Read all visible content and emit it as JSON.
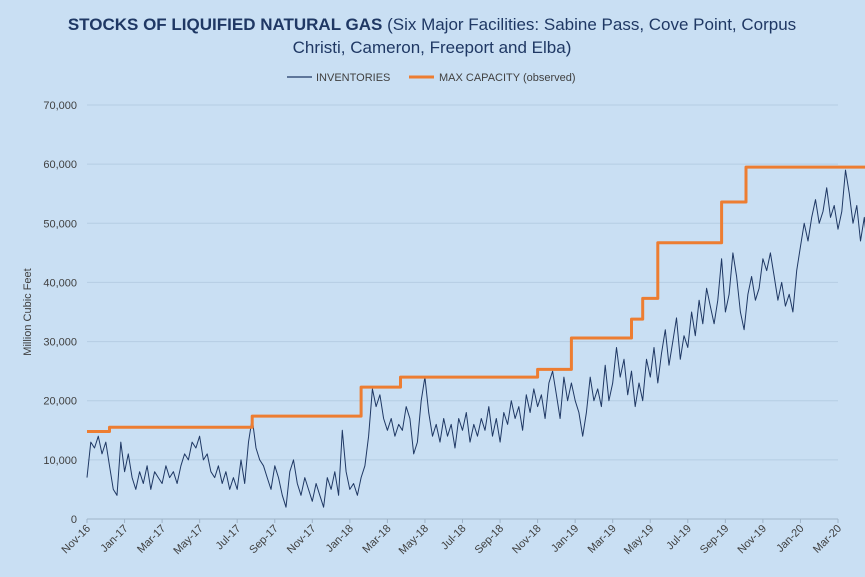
{
  "chart_data": {
    "type": "line",
    "title_bold": "STOCKS OF LIQUIFIED NATURAL GAS",
    "title_rest_line1": " (Six Major Facilities: Sabine Pass, Cove Point, Corpus",
    "title_line2": "Christi, Cameron, Freeport and Elba)",
    "ylabel": "Million Cubic Feet",
    "xlabel": "",
    "ylim": [
      0,
      70000
    ],
    "yticks": [
      "0",
      "10,000",
      "20,000",
      "30,000",
      "40,000",
      "50,000",
      "60,000",
      "70,000"
    ],
    "xticks": [
      "Nov-16",
      "Jan-17",
      "Mar-17",
      "May-17",
      "Jul-17",
      "Sep-17",
      "Nov-17",
      "Jan-18",
      "Mar-18",
      "May-18",
      "Jul-18",
      "Sep-18",
      "Nov-18",
      "Jan-19",
      "Mar-19",
      "May-19",
      "Jul-19",
      "Sep-19",
      "Nov-19",
      "Jan-20",
      "Mar-20"
    ],
    "grid": true,
    "legend_position": "top",
    "colors": {
      "inventories": "#1f3864",
      "max_capacity": "#ed7d31",
      "background": "#c9dff3"
    },
    "series": [
      {
        "name": "INVENTORIES",
        "style": "line",
        "points": [
          [
            0.0,
            7000
          ],
          [
            0.2,
            13000
          ],
          [
            0.4,
            12000
          ],
          [
            0.6,
            14000
          ],
          [
            0.8,
            11000
          ],
          [
            1.0,
            13000
          ],
          [
            1.2,
            9000
          ],
          [
            1.4,
            5000
          ],
          [
            1.6,
            4000
          ],
          [
            1.8,
            13000
          ],
          [
            2.0,
            8000
          ],
          [
            2.2,
            11000
          ],
          [
            2.4,
            7000
          ],
          [
            2.6,
            5000
          ],
          [
            2.8,
            8000
          ],
          [
            3.0,
            6000
          ],
          [
            3.2,
            9000
          ],
          [
            3.4,
            5000
          ],
          [
            3.6,
            8000
          ],
          [
            3.8,
            7000
          ],
          [
            4.0,
            6000
          ],
          [
            4.2,
            9000
          ],
          [
            4.4,
            7000
          ],
          [
            4.6,
            8000
          ],
          [
            4.8,
            6000
          ],
          [
            5.0,
            9000
          ],
          [
            5.2,
            11000
          ],
          [
            5.4,
            10000
          ],
          [
            5.6,
            13000
          ],
          [
            5.8,
            12000
          ],
          [
            6.0,
            14000
          ],
          [
            6.2,
            10000
          ],
          [
            6.4,
            11000
          ],
          [
            6.6,
            8000
          ],
          [
            6.8,
            7000
          ],
          [
            7.0,
            9000
          ],
          [
            7.2,
            6000
          ],
          [
            7.4,
            8000
          ],
          [
            7.6,
            5000
          ],
          [
            7.8,
            7000
          ],
          [
            8.0,
            5000
          ],
          [
            8.2,
            10000
          ],
          [
            8.4,
            6000
          ],
          [
            8.6,
            13000
          ],
          [
            8.8,
            17000
          ],
          [
            9.0,
            12000
          ],
          [
            9.2,
            10000
          ],
          [
            9.4,
            9000
          ],
          [
            9.6,
            7000
          ],
          [
            9.8,
            5000
          ],
          [
            10.0,
            9000
          ],
          [
            10.2,
            7000
          ],
          [
            10.4,
            4000
          ],
          [
            10.6,
            2000
          ],
          [
            10.8,
            8000
          ],
          [
            11.0,
            10000
          ],
          [
            11.2,
            6000
          ],
          [
            11.4,
            4000
          ],
          [
            11.6,
            7000
          ],
          [
            11.8,
            5000
          ],
          [
            12.0,
            3000
          ],
          [
            12.2,
            6000
          ],
          [
            12.4,
            4000
          ],
          [
            12.6,
            2000
          ],
          [
            12.8,
            7000
          ],
          [
            13.0,
            5000
          ],
          [
            13.2,
            8000
          ],
          [
            13.4,
            4000
          ],
          [
            13.6,
            15000
          ],
          [
            13.8,
            8000
          ],
          [
            14.0,
            5000
          ],
          [
            14.2,
            6000
          ],
          [
            14.4,
            4000
          ],
          [
            14.6,
            7000
          ],
          [
            14.8,
            9000
          ],
          [
            15.0,
            14000
          ],
          [
            15.2,
            22000
          ],
          [
            15.4,
            19000
          ],
          [
            15.6,
            21000
          ],
          [
            15.8,
            17000
          ],
          [
            16.0,
            15000
          ],
          [
            16.2,
            17000
          ],
          [
            16.4,
            14000
          ],
          [
            16.6,
            16000
          ],
          [
            16.8,
            15000
          ],
          [
            17.0,
            19000
          ],
          [
            17.2,
            17000
          ],
          [
            17.4,
            11000
          ],
          [
            17.6,
            13000
          ],
          [
            17.8,
            20000
          ],
          [
            18.0,
            24000
          ],
          [
            18.2,
            18000
          ],
          [
            18.4,
            14000
          ],
          [
            18.6,
            16000
          ],
          [
            18.8,
            13000
          ],
          [
            19.0,
            17000
          ],
          [
            19.2,
            14000
          ],
          [
            19.4,
            16000
          ],
          [
            19.6,
            12000
          ],
          [
            19.8,
            17000
          ],
          [
            20.0,
            15000
          ],
          [
            20.2,
            18000
          ],
          [
            20.4,
            13000
          ],
          [
            20.6,
            16000
          ],
          [
            20.8,
            14000
          ],
          [
            21.0,
            17000
          ],
          [
            21.2,
            15000
          ],
          [
            21.4,
            19000
          ],
          [
            21.6,
            14000
          ],
          [
            21.8,
            17000
          ],
          [
            22.0,
            13000
          ],
          [
            22.2,
            18000
          ],
          [
            22.4,
            16000
          ],
          [
            22.6,
            20000
          ],
          [
            22.8,
            17000
          ],
          [
            23.0,
            19000
          ],
          [
            23.2,
            15000
          ],
          [
            23.4,
            21000
          ],
          [
            23.6,
            18000
          ],
          [
            23.8,
            22000
          ],
          [
            24.0,
            19000
          ],
          [
            24.2,
            21000
          ],
          [
            24.4,
            17000
          ],
          [
            24.6,
            23000
          ],
          [
            24.8,
            25000
          ],
          [
            25.0,
            21000
          ],
          [
            25.2,
            17000
          ],
          [
            25.4,
            24000
          ],
          [
            25.6,
            20000
          ],
          [
            25.8,
            23000
          ],
          [
            26.0,
            20000
          ],
          [
            26.2,
            18000
          ],
          [
            26.4,
            14000
          ],
          [
            26.6,
            18000
          ],
          [
            26.8,
            24000
          ],
          [
            27.0,
            20000
          ],
          [
            27.2,
            22000
          ],
          [
            27.4,
            19000
          ],
          [
            27.6,
            26000
          ],
          [
            27.8,
            20000
          ],
          [
            28.0,
            23000
          ],
          [
            28.2,
            29000
          ],
          [
            28.4,
            24000
          ],
          [
            28.6,
            27000
          ],
          [
            28.8,
            21000
          ],
          [
            29.0,
            25000
          ],
          [
            29.2,
            19000
          ],
          [
            29.4,
            23000
          ],
          [
            29.6,
            20000
          ],
          [
            29.8,
            27000
          ],
          [
            30.0,
            24000
          ],
          [
            30.2,
            29000
          ],
          [
            30.4,
            23000
          ],
          [
            30.6,
            28000
          ],
          [
            30.8,
            32000
          ],
          [
            31.0,
            26000
          ],
          [
            31.2,
            30000
          ],
          [
            31.4,
            34000
          ],
          [
            31.6,
            27000
          ],
          [
            31.8,
            31000
          ],
          [
            32.0,
            29000
          ],
          [
            32.2,
            35000
          ],
          [
            32.4,
            31000
          ],
          [
            32.6,
            37000
          ],
          [
            32.8,
            33000
          ],
          [
            33.0,
            39000
          ],
          [
            33.2,
            36000
          ],
          [
            33.4,
            33000
          ],
          [
            33.6,
            37000
          ],
          [
            33.8,
            44000
          ],
          [
            34.0,
            35000
          ],
          [
            34.2,
            38000
          ],
          [
            34.4,
            45000
          ],
          [
            34.6,
            41000
          ],
          [
            34.8,
            35000
          ],
          [
            35.0,
            32000
          ],
          [
            35.2,
            38000
          ],
          [
            35.4,
            41000
          ],
          [
            35.6,
            37000
          ],
          [
            35.8,
            39000
          ],
          [
            36.0,
            44000
          ],
          [
            36.2,
            42000
          ],
          [
            36.4,
            45000
          ],
          [
            36.6,
            41000
          ],
          [
            36.8,
            37000
          ],
          [
            37.0,
            40000
          ],
          [
            37.2,
            36000
          ],
          [
            37.4,
            38000
          ],
          [
            37.6,
            35000
          ],
          [
            37.8,
            42000
          ],
          [
            38.0,
            46000
          ],
          [
            38.2,
            50000
          ],
          [
            38.4,
            47000
          ],
          [
            38.6,
            51000
          ],
          [
            38.8,
            54000
          ],
          [
            39.0,
            50000
          ],
          [
            39.2,
            52000
          ],
          [
            39.4,
            56000
          ],
          [
            39.6,
            51000
          ],
          [
            39.8,
            53000
          ],
          [
            40.0,
            49000
          ],
          [
            40.2,
            52000
          ],
          [
            40.4,
            59000
          ],
          [
            40.6,
            55000
          ],
          [
            40.8,
            50000
          ],
          [
            41.0,
            53000
          ],
          [
            41.2,
            47000
          ],
          [
            41.4,
            51000
          ],
          [
            41.6,
            45000
          ],
          [
            41.8,
            48000
          ],
          [
            42.0,
            40000
          ],
          [
            42.2,
            44000
          ],
          [
            42.4,
            48000
          ],
          [
            42.6,
            43000
          ],
          [
            42.8,
            55000
          ],
          [
            43.0,
            50000
          ],
          [
            43.2,
            40000
          ],
          [
            43.4,
            43000
          ],
          [
            43.6,
            36000
          ],
          [
            43.8,
            38000
          ],
          [
            44.0,
            33000
          ],
          [
            44.2,
            31000
          ],
          [
            44.4,
            35000
          ],
          [
            44.6,
            38000
          ],
          [
            44.8,
            32000
          ],
          [
            45.0,
            34000
          ],
          [
            45.2,
            30000
          ],
          [
            45.4,
            28000
          ]
        ]
      },
      {
        "name": "MAX CAPACITY (observed)",
        "style": "step",
        "points": [
          [
            0.0,
            14800
          ],
          [
            1.2,
            14800
          ],
          [
            1.2,
            15500
          ],
          [
            8.8,
            15500
          ],
          [
            8.8,
            17400
          ],
          [
            14.6,
            17400
          ],
          [
            14.6,
            22300
          ],
          [
            16.7,
            22300
          ],
          [
            16.7,
            24000
          ],
          [
            24.0,
            24000
          ],
          [
            24.0,
            25300
          ],
          [
            25.8,
            25300
          ],
          [
            25.8,
            30600
          ],
          [
            29.0,
            30600
          ],
          [
            29.0,
            33800
          ],
          [
            29.6,
            33800
          ],
          [
            29.6,
            37300
          ],
          [
            30.4,
            37300
          ],
          [
            30.4,
            46700
          ],
          [
            33.8,
            46700
          ],
          [
            33.8,
            53600
          ],
          [
            35.1,
            53600
          ],
          [
            35.1,
            59500
          ],
          [
            45.4,
            59500
          ]
        ]
      }
    ]
  },
  "legend": {
    "inventories_label": "INVENTORIES",
    "capacity_label": "MAX CAPACITY (observed)"
  }
}
